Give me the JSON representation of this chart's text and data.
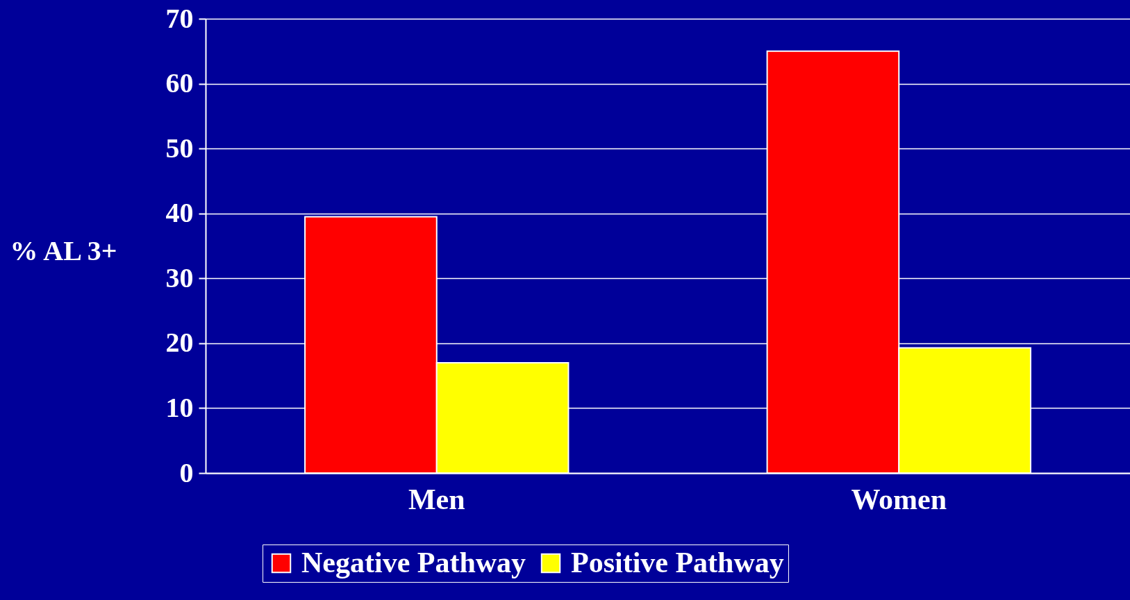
{
  "chart_data": {
    "type": "bar",
    "categories": [
      "Men",
      "Women"
    ],
    "ylabel": "% AL 3+",
    "series": [
      {
        "name": "Negative Pathway",
        "color": "#ff0000",
        "values": [
          39.5,
          65
        ]
      },
      {
        "name": "Positive Pathway",
        "color": "#ffff00",
        "values": [
          17,
          19.3
        ]
      }
    ],
    "ylim": [
      0,
      70
    ],
    "yticks": [
      0,
      10,
      20,
      30,
      40,
      50,
      60,
      70
    ],
    "grid": "y",
    "legend": "bottom"
  }
}
